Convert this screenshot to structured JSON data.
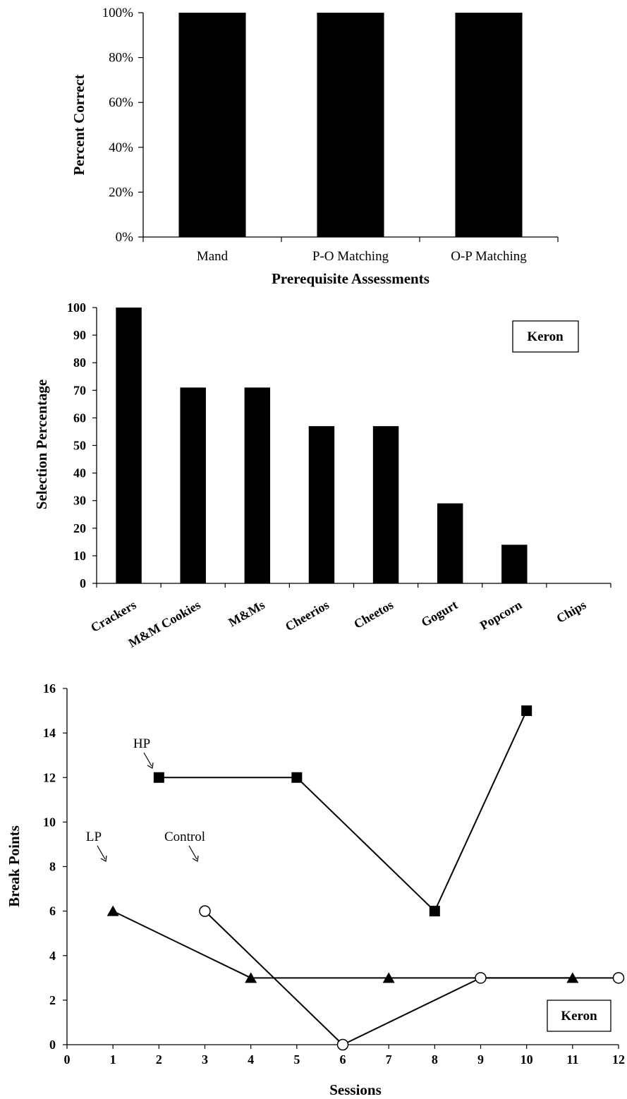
{
  "chart_data": [
    {
      "type": "bar",
      "title": "",
      "categories": [
        "Mand",
        "P-O Matching",
        "O-P Matching"
      ],
      "values": [
        100,
        100,
        100
      ],
      "xlabel": "Prerequisite Assessments",
      "ylabel": "Percent Correct",
      "ylim": [
        0,
        100
      ],
      "yticks": [
        "0%",
        "20%",
        "40%",
        "60%",
        "80%",
        "100%"
      ],
      "bar_color": "#000000",
      "grid": false
    },
    {
      "type": "bar",
      "title": "",
      "categories": [
        "Crackers",
        "M&M Cookies",
        "M&Ms",
        "Cheerios",
        "Cheetos",
        "Gogurt",
        "Popcorn",
        "Chips"
      ],
      "values": [
        100,
        71,
        71,
        57,
        57,
        29,
        14,
        0
      ],
      "xlabel": "",
      "ylabel": "Selection Percentage",
      "ylim": [
        0,
        100
      ],
      "yticks": [
        "0",
        "10",
        "20",
        "30",
        "40",
        "50",
        "60",
        "70",
        "80",
        "90",
        "100"
      ],
      "legend_box": "Keron",
      "bar_color": "#000000",
      "grid": false
    },
    {
      "type": "line",
      "title": "",
      "xlabel": "Sessions",
      "ylabel": "Break Points",
      "xlim": [
        0,
        12
      ],
      "ylim": [
        0,
        16
      ],
      "xticks": [
        "0",
        "1",
        "2",
        "3",
        "4",
        "5",
        "6",
        "7",
        "8",
        "9",
        "10",
        "11",
        "12"
      ],
      "yticks": [
        "0",
        "2",
        "4",
        "6",
        "8",
        "10",
        "12",
        "14",
        "16"
      ],
      "legend_box": "Keron",
      "grid": false,
      "series": [
        {
          "name": "HP",
          "marker": "square",
          "x": [
            2,
            5,
            8,
            10
          ],
          "y": [
            12,
            12,
            6,
            15
          ]
        },
        {
          "name": "LP",
          "marker": "triangle",
          "x": [
            1,
            4,
            7,
            11
          ],
          "y": [
            6,
            3,
            3,
            3
          ]
        },
        {
          "name": "Control",
          "marker": "circle-open",
          "x": [
            3,
            6,
            9,
            12
          ],
          "y": [
            6,
            0,
            3,
            3
          ]
        }
      ]
    }
  ]
}
